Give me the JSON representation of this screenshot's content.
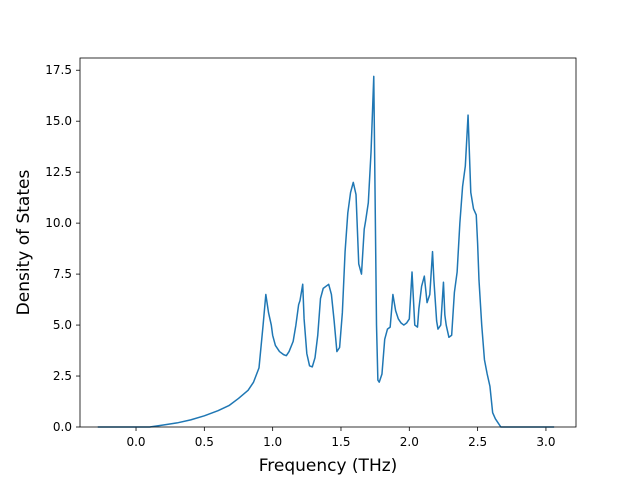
{
  "chart_data": {
    "type": "line",
    "title": "",
    "xlabel": "Frequency (THz)",
    "ylabel": "Density of States",
    "xlim": [
      -0.41,
      3.22
    ],
    "ylim": [
      0,
      18.1
    ],
    "xticks": [
      0.0,
      0.5,
      1.0,
      1.5,
      2.0,
      2.5,
      3.0
    ],
    "xtick_labels": [
      "0.0",
      "0.5",
      "1.0",
      "1.5",
      "2.0",
      "2.5",
      "3.0"
    ],
    "yticks": [
      0.0,
      2.5,
      5.0,
      7.5,
      10.0,
      12.5,
      15.0,
      17.5
    ],
    "ytick_labels": [
      "0.0",
      "2.5",
      "5.0",
      "7.5",
      "10.0",
      "12.5",
      "15.0",
      "17.5"
    ],
    "grid": false,
    "legend": "none",
    "line_color": "#1f77b4",
    "series": [
      {
        "x": [
          -0.28,
          0.1,
          0.2,
          0.3,
          0.4,
          0.5,
          0.6,
          0.68,
          0.75,
          0.82,
          0.86,
          0.9,
          0.93,
          0.95,
          0.97,
          0.99,
          1.0,
          1.02,
          1.05,
          1.08,
          1.1,
          1.12,
          1.15,
          1.17,
          1.19,
          1.2,
          1.22,
          1.23,
          1.25,
          1.27,
          1.29,
          1.31,
          1.33,
          1.35,
          1.37,
          1.39,
          1.41,
          1.43,
          1.45,
          1.47,
          1.49,
          1.51,
          1.53,
          1.55,
          1.57,
          1.59,
          1.61,
          1.63,
          1.65,
          1.67,
          1.68,
          1.7,
          1.72,
          1.74,
          1.76,
          1.77,
          1.78,
          1.8,
          1.82,
          1.84,
          1.86,
          1.88,
          1.9,
          1.92,
          1.94,
          1.96,
          1.98,
          2.0,
          2.02,
          2.04,
          2.06,
          2.07,
          2.09,
          2.11,
          2.13,
          2.15,
          2.17,
          2.18,
          2.2,
          2.21,
          2.23,
          2.25,
          2.26,
          2.27,
          2.29,
          2.31,
          2.33,
          2.35,
          2.37,
          2.39,
          2.41,
          2.43,
          2.45,
          2.47,
          2.49,
          2.5,
          2.51,
          2.53,
          2.55,
          2.57,
          2.59,
          2.61,
          2.63,
          2.65,
          2.67,
          2.69,
          2.71,
          2.73,
          2.75,
          2.76,
          2.8,
          3.06
        ],
        "values": [
          0.0,
          0.0,
          0.1,
          0.2,
          0.35,
          0.55,
          0.8,
          1.05,
          1.4,
          1.8,
          2.2,
          2.9,
          5.0,
          6.5,
          5.6,
          5.0,
          4.5,
          4.0,
          3.7,
          3.55,
          3.5,
          3.7,
          4.2,
          5.0,
          6.0,
          6.2,
          7.0,
          5.3,
          3.6,
          3.0,
          2.95,
          3.4,
          4.5,
          6.3,
          6.8,
          6.9,
          7.0,
          6.5,
          5.2,
          3.7,
          3.9,
          5.6,
          8.6,
          10.5,
          11.5,
          12.0,
          11.4,
          8.0,
          7.5,
          9.7,
          10.1,
          11.0,
          13.5,
          17.2,
          5.0,
          2.3,
          2.2,
          2.6,
          4.3,
          4.8,
          4.9,
          6.5,
          5.7,
          5.3,
          5.1,
          5.0,
          5.1,
          5.3,
          7.6,
          5.0,
          4.9,
          5.8,
          6.9,
          7.4,
          6.1,
          6.5,
          8.6,
          7.2,
          5.2,
          4.8,
          5.0,
          7.1,
          5.5,
          5.0,
          4.4,
          4.5,
          6.6,
          7.6,
          10.0,
          11.8,
          12.8,
          15.3,
          11.5,
          10.7,
          10.4,
          9.0,
          7.2,
          5.0,
          3.3,
          2.6,
          2.0,
          0.7,
          0.4,
          0.2,
          0.0,
          0.0,
          0.0,
          0.0,
          0.0,
          0.0,
          0.0,
          0.0
        ]
      }
    ]
  }
}
